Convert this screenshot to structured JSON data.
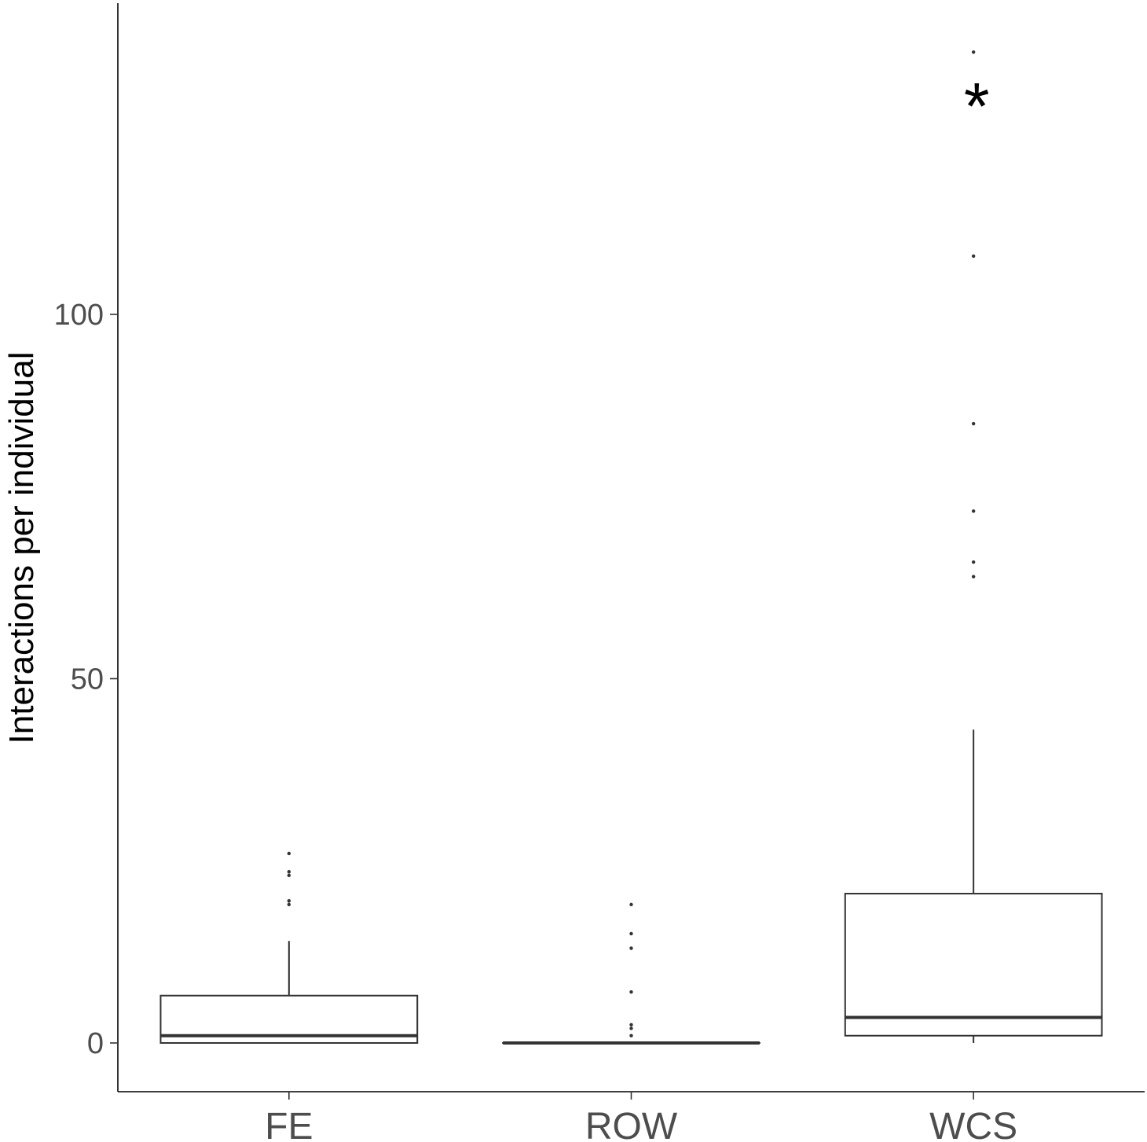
{
  "chart_data": {
    "type": "box",
    "title": "",
    "xlabel": "",
    "ylabel": "Interactions per individual",
    "ylim": [
      -6.5,
      143
    ],
    "yticks": [
      0,
      50,
      100
    ],
    "grid": false,
    "legend": "none",
    "categories": [
      "FE",
      "ROW",
      "WCS"
    ],
    "boxes": [
      {
        "category": "FE",
        "min": 0,
        "q1": 0,
        "median": 1,
        "q3": 6.5,
        "max": 14,
        "outliers": [
          19,
          19.5,
          23,
          23.5,
          26
        ]
      },
      {
        "category": "ROW",
        "min": 0,
        "q1": 0,
        "median": 0,
        "q3": 0,
        "max": 0,
        "outliers": [
          1,
          2,
          2.5,
          7,
          13,
          15,
          19
        ]
      },
      {
        "category": "WCS",
        "min": 0,
        "q1": 1,
        "median": 3.5,
        "q3": 20.5,
        "max": 43,
        "outliers": [
          64,
          66,
          73,
          85,
          108,
          136
        ]
      }
    ],
    "annotations": [
      {
        "category": "WCS",
        "y": 130,
        "text": "*"
      }
    ]
  }
}
